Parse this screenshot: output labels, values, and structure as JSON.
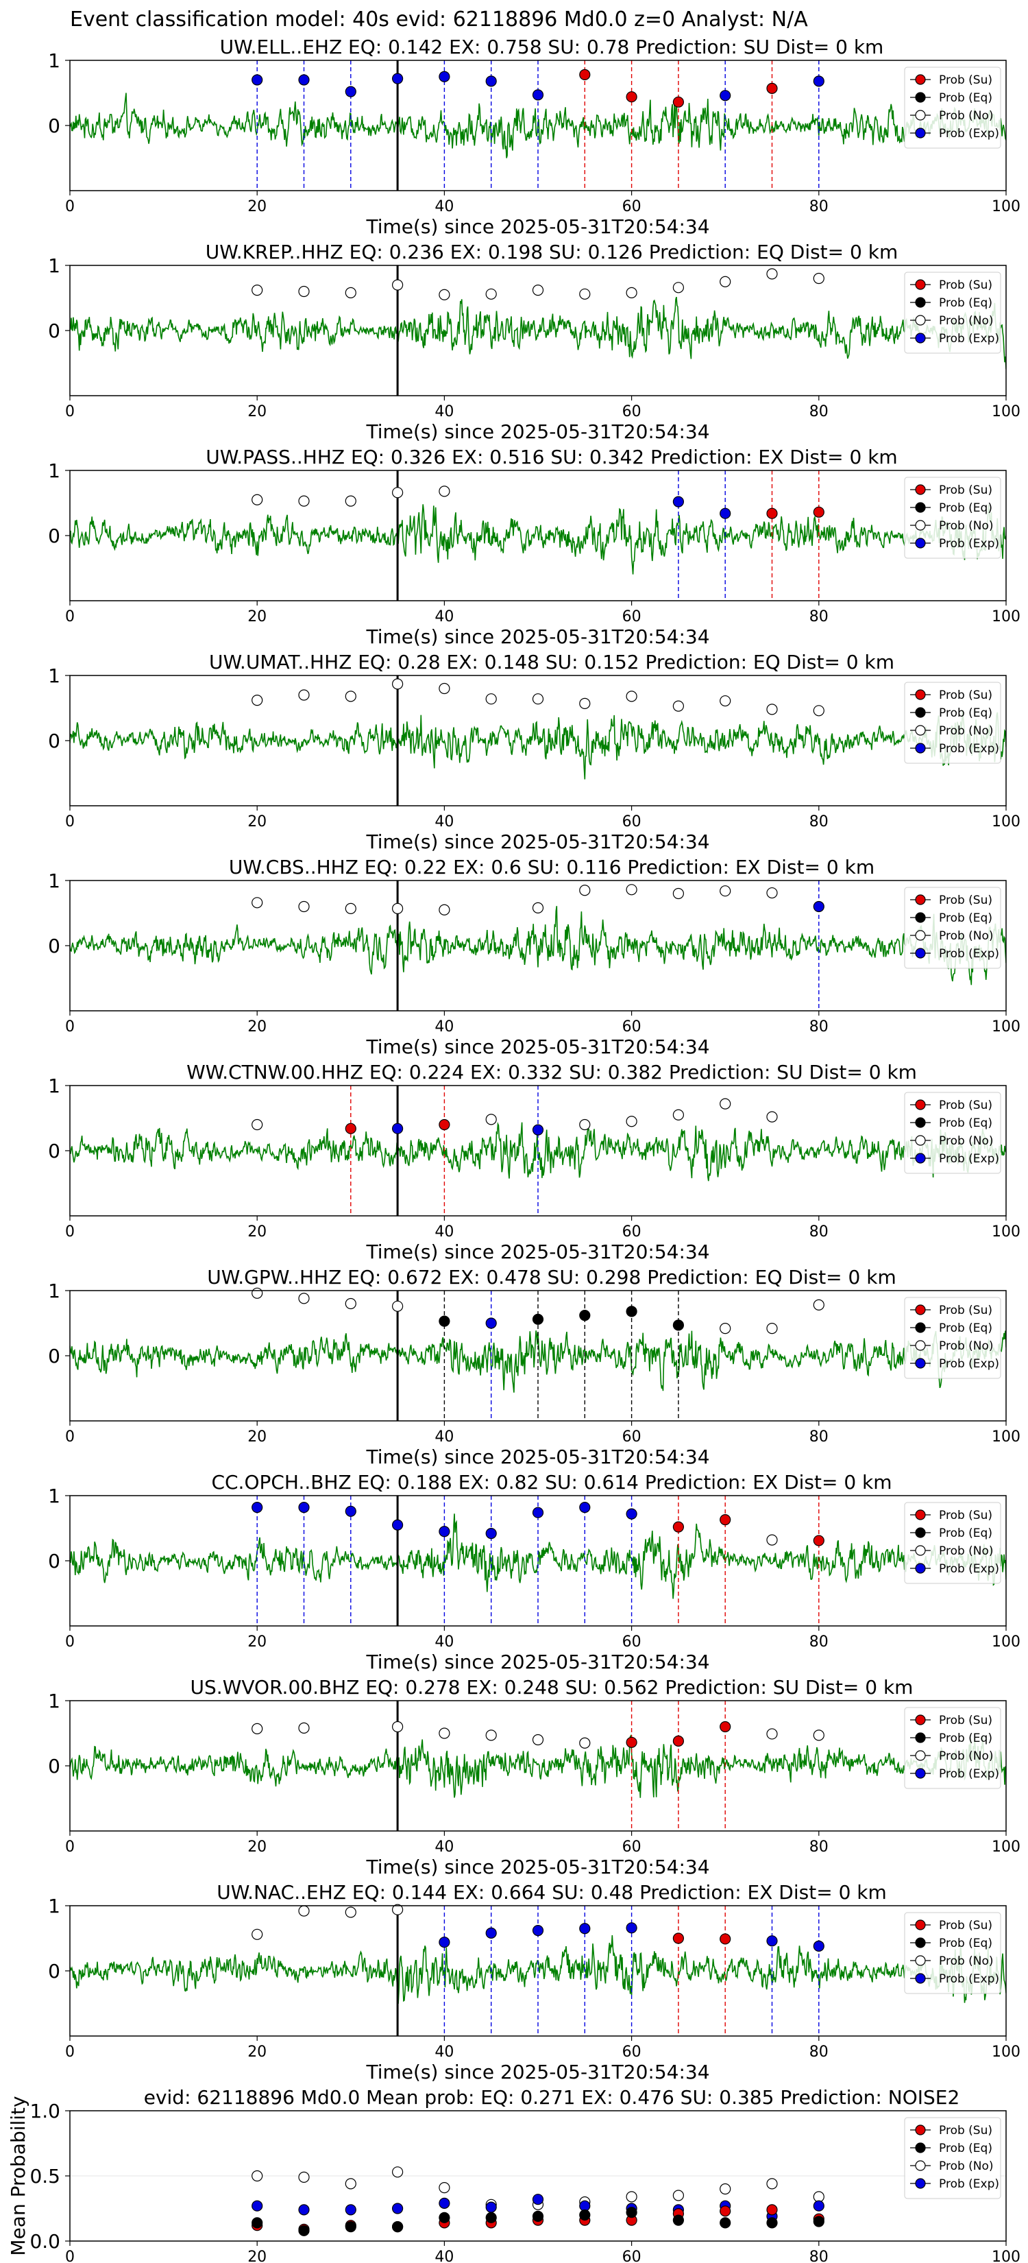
{
  "suptitle": "Event classification model: 40s evid: 62118896 Md0.0 z=0 Analyst: N/A",
  "xlabel": "Time(s) since 2025-05-31T20:54:34",
  "legend": [
    "Prob (Su)",
    "Prob (Eq)",
    "Prob (No)",
    "Prob (Exp)"
  ],
  "colors": {
    "su": "#e00000",
    "eq": "#000000",
    "no": "#ffffff",
    "exp": "#0000e0",
    "wave": "#008000",
    "pick": "#000000"
  },
  "chart_data": [
    {
      "type": "line",
      "title": "UW.ELL..EHZ   EQ: 0.142  EX: 0.758  SU: 0.78   Prediction: SU    Dist= 0 km",
      "xlim": [
        0,
        100
      ],
      "ylim": [
        -1,
        1
      ],
      "xticks": [
        0,
        20,
        40,
        60,
        80,
        100
      ],
      "yticks": [
        1,
        0
      ],
      "pick_time": 35,
      "points": [
        [
          20,
          0.7,
          "exp"
        ],
        [
          25,
          0.7,
          "exp"
        ],
        [
          30,
          0.52,
          "exp"
        ],
        [
          35,
          0.72,
          "exp"
        ],
        [
          40,
          0.75,
          "exp"
        ],
        [
          45,
          0.68,
          "exp"
        ],
        [
          50,
          0.47,
          "exp"
        ],
        [
          55,
          0.78,
          "su"
        ],
        [
          60,
          0.44,
          "su"
        ],
        [
          65,
          0.36,
          "su"
        ],
        [
          70,
          0.46,
          "exp"
        ],
        [
          75,
          0.57,
          "su"
        ],
        [
          80,
          0.68,
          "exp"
        ]
      ]
    },
    {
      "type": "line",
      "title": "UW.KREP..HHZ   EQ: 0.236  EX: 0.198  SU: 0.126   Prediction: EQ    Dist= 0 km",
      "xlim": [
        0,
        100
      ],
      "ylim": [
        -1,
        1
      ],
      "xticks": [
        0,
        20,
        40,
        60,
        80,
        100
      ],
      "yticks": [
        1,
        0
      ],
      "pick_time": 35,
      "points": [
        [
          20,
          0.62,
          "no"
        ],
        [
          25,
          0.6,
          "no"
        ],
        [
          30,
          0.58,
          "no"
        ],
        [
          35,
          0.7,
          "no"
        ],
        [
          40,
          0.55,
          "no"
        ],
        [
          45,
          0.56,
          "no"
        ],
        [
          50,
          0.62,
          "no"
        ],
        [
          55,
          0.56,
          "no"
        ],
        [
          60,
          0.58,
          "no"
        ],
        [
          65,
          0.66,
          "no"
        ],
        [
          70,
          0.75,
          "no"
        ],
        [
          75,
          0.87,
          "no"
        ],
        [
          80,
          0.8,
          "no"
        ]
      ]
    },
    {
      "type": "line",
      "title": "UW.PASS..HHZ   EQ: 0.326  EX: 0.516  SU: 0.342   Prediction: EX    Dist= 0 km",
      "xlim": [
        0,
        100
      ],
      "ylim": [
        -1,
        1
      ],
      "xticks": [
        0,
        20,
        40,
        60,
        80,
        100
      ],
      "yticks": [
        1,
        0
      ],
      "pick_time": 35,
      "points": [
        [
          20,
          0.55,
          "no"
        ],
        [
          25,
          0.53,
          "no"
        ],
        [
          30,
          0.53,
          "no"
        ],
        [
          35,
          0.66,
          "no"
        ],
        [
          40,
          0.68,
          "no"
        ],
        [
          65,
          0.52,
          "exp"
        ],
        [
          70,
          0.34,
          "exp"
        ],
        [
          75,
          0.34,
          "su"
        ],
        [
          80,
          0.36,
          "su"
        ]
      ]
    },
    {
      "type": "line",
      "title": "UW.UMAT..HHZ   EQ: 0.28  EX: 0.148  SU: 0.152   Prediction: EQ    Dist= 0 km",
      "xlim": [
        0,
        100
      ],
      "ylim": [
        -1,
        1
      ],
      "xticks": [
        0,
        20,
        40,
        60,
        80,
        100
      ],
      "yticks": [
        1,
        0
      ],
      "pick_time": 35,
      "points": [
        [
          20,
          0.62,
          "no"
        ],
        [
          25,
          0.7,
          "no"
        ],
        [
          30,
          0.68,
          "no"
        ],
        [
          35,
          0.87,
          "no"
        ],
        [
          40,
          0.8,
          "no"
        ],
        [
          45,
          0.64,
          "no"
        ],
        [
          50,
          0.64,
          "no"
        ],
        [
          55,
          0.57,
          "no"
        ],
        [
          60,
          0.68,
          "no"
        ],
        [
          65,
          0.53,
          "no"
        ],
        [
          70,
          0.61,
          "no"
        ],
        [
          75,
          0.48,
          "no"
        ],
        [
          80,
          0.46,
          "no"
        ]
      ]
    },
    {
      "type": "line",
      "title": "UW.CBS..HHZ   EQ: 0.22  EX: 0.6  SU: 0.116   Prediction: EX    Dist= 0 km",
      "xlim": [
        0,
        100
      ],
      "ylim": [
        -1,
        1
      ],
      "xticks": [
        0,
        20,
        40,
        60,
        80,
        100
      ],
      "yticks": [
        1,
        0
      ],
      "pick_time": 35,
      "points": [
        [
          20,
          0.66,
          "no"
        ],
        [
          25,
          0.6,
          "no"
        ],
        [
          30,
          0.57,
          "no"
        ],
        [
          35,
          0.57,
          "no"
        ],
        [
          40,
          0.55,
          "no"
        ],
        [
          50,
          0.58,
          "no"
        ],
        [
          55,
          0.85,
          "no"
        ],
        [
          60,
          0.86,
          "no"
        ],
        [
          65,
          0.8,
          "no"
        ],
        [
          70,
          0.84,
          "no"
        ],
        [
          75,
          0.81,
          "no"
        ],
        [
          80,
          0.6,
          "exp"
        ]
      ]
    },
    {
      "type": "line",
      "title": "WW.CTNW.00.HHZ   EQ: 0.224  EX: 0.332  SU: 0.382   Prediction: SU    Dist= 0 km",
      "xlim": [
        0,
        100
      ],
      "ylim": [
        -1,
        1
      ],
      "xticks": [
        0,
        20,
        40,
        60,
        80,
        100
      ],
      "yticks": [
        1,
        0
      ],
      "pick_time": 35,
      "points": [
        [
          20,
          0.4,
          "no"
        ],
        [
          30,
          0.34,
          "su"
        ],
        [
          35,
          0.34,
          "exp"
        ],
        [
          40,
          0.4,
          "su"
        ],
        [
          45,
          0.48,
          "no"
        ],
        [
          50,
          0.32,
          "exp"
        ],
        [
          55,
          0.4,
          "no"
        ],
        [
          60,
          0.45,
          "no"
        ],
        [
          65,
          0.55,
          "no"
        ],
        [
          70,
          0.72,
          "no"
        ],
        [
          75,
          0.52,
          "no"
        ]
      ]
    },
    {
      "type": "line",
      "title": "UW.GPW..HHZ   EQ: 0.672  EX: 0.478  SU: 0.298   Prediction: EQ    Dist= 0 km",
      "xlim": [
        0,
        100
      ],
      "ylim": [
        -1,
        1
      ],
      "xticks": [
        0,
        20,
        40,
        60,
        80,
        100
      ],
      "yticks": [
        1,
        0
      ],
      "pick_time": 35,
      "points": [
        [
          20,
          0.96,
          "no"
        ],
        [
          25,
          0.88,
          "no"
        ],
        [
          30,
          0.8,
          "no"
        ],
        [
          35,
          0.76,
          "no"
        ],
        [
          40,
          0.53,
          "eq"
        ],
        [
          45,
          0.5,
          "exp"
        ],
        [
          50,
          0.56,
          "eq"
        ],
        [
          55,
          0.62,
          "eq"
        ],
        [
          60,
          0.68,
          "eq"
        ],
        [
          65,
          0.47,
          "eq"
        ],
        [
          70,
          0.42,
          "no"
        ],
        [
          75,
          0.42,
          "no"
        ],
        [
          80,
          0.78,
          "no"
        ]
      ]
    },
    {
      "type": "line",
      "title": "CC.OPCH..BHZ   EQ: 0.188  EX: 0.82  SU: 0.614   Prediction: EX    Dist= 0 km",
      "xlim": [
        0,
        100
      ],
      "ylim": [
        -1,
        1
      ],
      "xticks": [
        0,
        20,
        40,
        60,
        80,
        100
      ],
      "yticks": [
        1,
        0
      ],
      "pick_time": 35,
      "points": [
        [
          20,
          0.82,
          "exp"
        ],
        [
          25,
          0.82,
          "exp"
        ],
        [
          30,
          0.76,
          "exp"
        ],
        [
          35,
          0.55,
          "exp"
        ],
        [
          40,
          0.45,
          "exp"
        ],
        [
          45,
          0.42,
          "exp"
        ],
        [
          50,
          0.74,
          "exp"
        ],
        [
          55,
          0.82,
          "exp"
        ],
        [
          60,
          0.72,
          "exp"
        ],
        [
          65,
          0.52,
          "su"
        ],
        [
          70,
          0.63,
          "su"
        ],
        [
          75,
          0.32,
          "no"
        ],
        [
          80,
          0.31,
          "su"
        ]
      ]
    },
    {
      "type": "line",
      "title": "US.WVOR.00.BHZ   EQ: 0.278  EX: 0.248  SU: 0.562   Prediction: SU    Dist= 0 km",
      "xlim": [
        0,
        100
      ],
      "ylim": [
        -1,
        1
      ],
      "xticks": [
        0,
        20,
        40,
        60,
        80,
        100
      ],
      "yticks": [
        1,
        0
      ],
      "pick_time": 35,
      "points": [
        [
          20,
          0.57,
          "no"
        ],
        [
          25,
          0.58,
          "no"
        ],
        [
          35,
          0.6,
          "no"
        ],
        [
          40,
          0.5,
          "no"
        ],
        [
          45,
          0.47,
          "no"
        ],
        [
          50,
          0.4,
          "no"
        ],
        [
          55,
          0.35,
          "no"
        ],
        [
          60,
          0.36,
          "su"
        ],
        [
          65,
          0.38,
          "su"
        ],
        [
          70,
          0.6,
          "su"
        ],
        [
          75,
          0.49,
          "no"
        ],
        [
          80,
          0.47,
          "no"
        ]
      ]
    },
    {
      "type": "line",
      "title": "UW.NAC..EHZ   EQ: 0.144  EX: 0.664  SU: 0.48   Prediction: EX    Dist= 0 km",
      "xlim": [
        0,
        100
      ],
      "ylim": [
        -1,
        1
      ],
      "xticks": [
        0,
        20,
        40,
        60,
        80,
        100
      ],
      "yticks": [
        1,
        0
      ],
      "pick_time": 35,
      "points": [
        [
          20,
          0.56,
          "no"
        ],
        [
          25,
          0.92,
          "no"
        ],
        [
          30,
          0.9,
          "no"
        ],
        [
          35,
          0.94,
          "no"
        ],
        [
          40,
          0.44,
          "exp"
        ],
        [
          45,
          0.58,
          "exp"
        ],
        [
          50,
          0.62,
          "exp"
        ],
        [
          55,
          0.65,
          "exp"
        ],
        [
          60,
          0.66,
          "exp"
        ],
        [
          65,
          0.5,
          "su"
        ],
        [
          70,
          0.49,
          "su"
        ],
        [
          75,
          0.46,
          "exp"
        ],
        [
          80,
          0.38,
          "exp"
        ]
      ]
    },
    {
      "type": "scatter",
      "title": "evid: 62118896  Md0.0   Mean prob:   EQ: 0.271  EX: 0.476  SU: 0.385   Prediction: NOISE2",
      "ylabel": "Mean Probability",
      "xlim": [
        0,
        100
      ],
      "ylim": [
        0,
        1
      ],
      "xticks": [
        0,
        20,
        40,
        60,
        80,
        100
      ],
      "yticks": [
        0.0,
        0.5,
        1.0
      ],
      "x": [
        20,
        25,
        30,
        35,
        40,
        45,
        50,
        55,
        60,
        65,
        70,
        75,
        80
      ],
      "series": [
        {
          "name": "Prob (No)",
          "key": "no",
          "values": [
            0.5,
            0.49,
            0.44,
            0.53,
            0.41,
            0.28,
            0.28,
            0.3,
            0.34,
            0.35,
            0.4,
            0.44,
            0.34
          ]
        },
        {
          "name": "Prob (Exp)",
          "key": "exp",
          "values": [
            0.27,
            0.24,
            0.24,
            0.25,
            0.29,
            0.26,
            0.32,
            0.27,
            0.25,
            0.24,
            0.27,
            0.19,
            0.27
          ]
        },
        {
          "name": "Prob (Su)",
          "key": "su",
          "values": [
            0.12,
            0.09,
            0.12,
            0.11,
            0.14,
            0.14,
            0.16,
            0.16,
            0.16,
            0.21,
            0.23,
            0.24,
            0.17
          ]
        },
        {
          "name": "Prob (Eq)",
          "key": "eq",
          "values": [
            0.14,
            0.08,
            0.11,
            0.11,
            0.18,
            0.18,
            0.19,
            0.2,
            0.22,
            0.16,
            0.14,
            0.14,
            0.15
          ]
        }
      ]
    }
  ]
}
